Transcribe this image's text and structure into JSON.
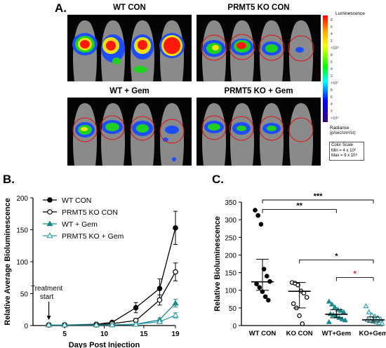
{
  "panels": {
    "a": "A.",
    "b": "B.",
    "c": "C."
  },
  "images": {
    "groups": [
      {
        "title": "WT CON",
        "mice": [
          {
            "blob": "red-large",
            "roi": false
          },
          {
            "blob": "mixed-red-blue",
            "roi": false
          },
          {
            "blob": "red-yellow",
            "roi": false
          },
          {
            "blob": "red-large",
            "roi": false
          }
        ]
      },
      {
        "title": "PRMT5 KO CON",
        "mice": [
          {
            "blob": "green-yellow",
            "roi": true
          },
          {
            "blob": "red-green",
            "roi": true
          },
          {
            "blob": "green-blue",
            "roi": true
          },
          {
            "blob": "blue-small",
            "roi": true
          }
        ]
      },
      {
        "title": "WT + Gem",
        "mice": [
          {
            "blob": "green-yellow",
            "roi": true
          },
          {
            "blob": "green",
            "roi": true
          },
          {
            "blob": "green-blue",
            "roi": true
          },
          {
            "blob": "blue-scattered",
            "roi": true
          }
        ]
      },
      {
        "title": "PRMT5 KO + Gem",
        "mice": [
          {
            "blob": "green",
            "roi": true
          },
          {
            "blob": "blue-green",
            "roi": true
          },
          {
            "blob": "blue-green",
            "roi": true
          },
          {
            "blob": "none",
            "roi": true
          }
        ]
      }
    ],
    "colorbar": {
      "top_label": "Luminescence",
      "tick_labels": [
        "8",
        "6",
        "4",
        "2",
        "×10⁸",
        "8",
        "6",
        "4",
        "2",
        "×10⁷",
        "8",
        "6",
        "4",
        "2",
        "×10⁶"
      ],
      "radiance_label": "Radiance",
      "radiance_units": "(p/sec/cm²/sr)",
      "scale_title": "Color Scale",
      "scale_min": "Min = 4 x 10⁶",
      "scale_max": "Max = 9 x 10⁸"
    }
  },
  "colors": {
    "wt_con": "#000000",
    "ko_con": "#000000",
    "wt_gem": "#1a8a8a",
    "ko_gem": "#2a9aa8",
    "star_red": "#e31a1c"
  },
  "chart_data": [
    {
      "type": "line",
      "xlabel": "Days Post Injection",
      "ylabel": "Relative Average Bioluminescence",
      "xticks": [
        5,
        10,
        15,
        19
      ],
      "yticks": [
        0,
        50,
        100,
        150,
        200
      ],
      "xlim": [
        1,
        19
      ],
      "ylim": [
        0,
        200
      ],
      "annotation": [
        "Treatment",
        "start"
      ],
      "annotation_x": 3,
      "series": [
        {
          "name": "WT CON",
          "marker": "filled-circle",
          "x": [
            3,
            5,
            9,
            11,
            14,
            17,
            19
          ],
          "y": [
            1,
            1,
            2,
            5,
            28,
            58,
            153
          ],
          "err": [
            0,
            0,
            0,
            1,
            8,
            15,
            26
          ]
        },
        {
          "name": "PRMT5 KO CON",
          "marker": "open-circle",
          "x": [
            3,
            5,
            9,
            11,
            14,
            17,
            19
          ],
          "y": [
            1,
            1,
            1,
            3,
            8,
            40,
            84
          ],
          "err": [
            0,
            0,
            0,
            1,
            3,
            8,
            14
          ]
        },
        {
          "name": "WT + Gem",
          "marker": "filled-triangle",
          "x": [
            3,
            5,
            9,
            11,
            14,
            17,
            19
          ],
          "y": [
            1,
            1,
            1,
            1,
            2,
            9,
            35
          ],
          "err": [
            0,
            0,
            0,
            0,
            1,
            3,
            6
          ]
        },
        {
          "name": "PRMT5 KO + Gem",
          "marker": "open-triangle",
          "x": [
            3,
            5,
            9,
            11,
            14,
            17,
            19
          ],
          "y": [
            1,
            1,
            1,
            1,
            2,
            6,
            16
          ],
          "err": [
            0,
            0,
            0,
            0,
            1,
            2,
            4
          ]
        }
      ]
    },
    {
      "type": "scatter",
      "ylabel": "Relative Bioluminescence",
      "categories": [
        "WT CON",
        "KO CON",
        "WT+Gem",
        "KO+Gem"
      ],
      "yticks": [
        0,
        50,
        100,
        150,
        200,
        250,
        300,
        350
      ],
      "ylim": [
        0,
        350
      ],
      "groups": [
        {
          "name": "WT CON",
          "marker": "filled-circle",
          "values": [
            327,
            312,
            287,
            160,
            140,
            125,
            118,
            108,
            96,
            82,
            72
          ],
          "mean": 124,
          "err_low": 100,
          "err_high": 188
        },
        {
          "name": "KO CON",
          "marker": "open-circle",
          "values": [
            122,
            120,
            115,
            98,
            92,
            80,
            62,
            50,
            28,
            5
          ],
          "mean": 97,
          "err_low": 50,
          "err_high": 122
        },
        {
          "name": "WT+Gem",
          "marker": "filled-triangle",
          "values": [
            68,
            60,
            52,
            45,
            42,
            38,
            33,
            30,
            26,
            22,
            18,
            15,
            10
          ],
          "mean": 32,
          "err_low": 22,
          "err_high": 45
        },
        {
          "name": "KO+Gem",
          "marker": "open-triangle",
          "values": [
            55,
            38,
            30,
            26,
            22,
            18,
            16,
            14,
            12,
            10,
            8,
            6
          ],
          "mean": 16,
          "err_low": 10,
          "err_high": 24
        }
      ],
      "significance": [
        {
          "from": 0,
          "to": 3,
          "label": "***",
          "color": "#000000"
        },
        {
          "from": 0,
          "to": 2,
          "label": "**",
          "color": "#000000"
        },
        {
          "from": 1,
          "to": 3,
          "label": "*",
          "color": "#000000"
        },
        {
          "from": 2,
          "to": 3,
          "label": "*",
          "color": "#e31a1c"
        }
      ]
    }
  ]
}
